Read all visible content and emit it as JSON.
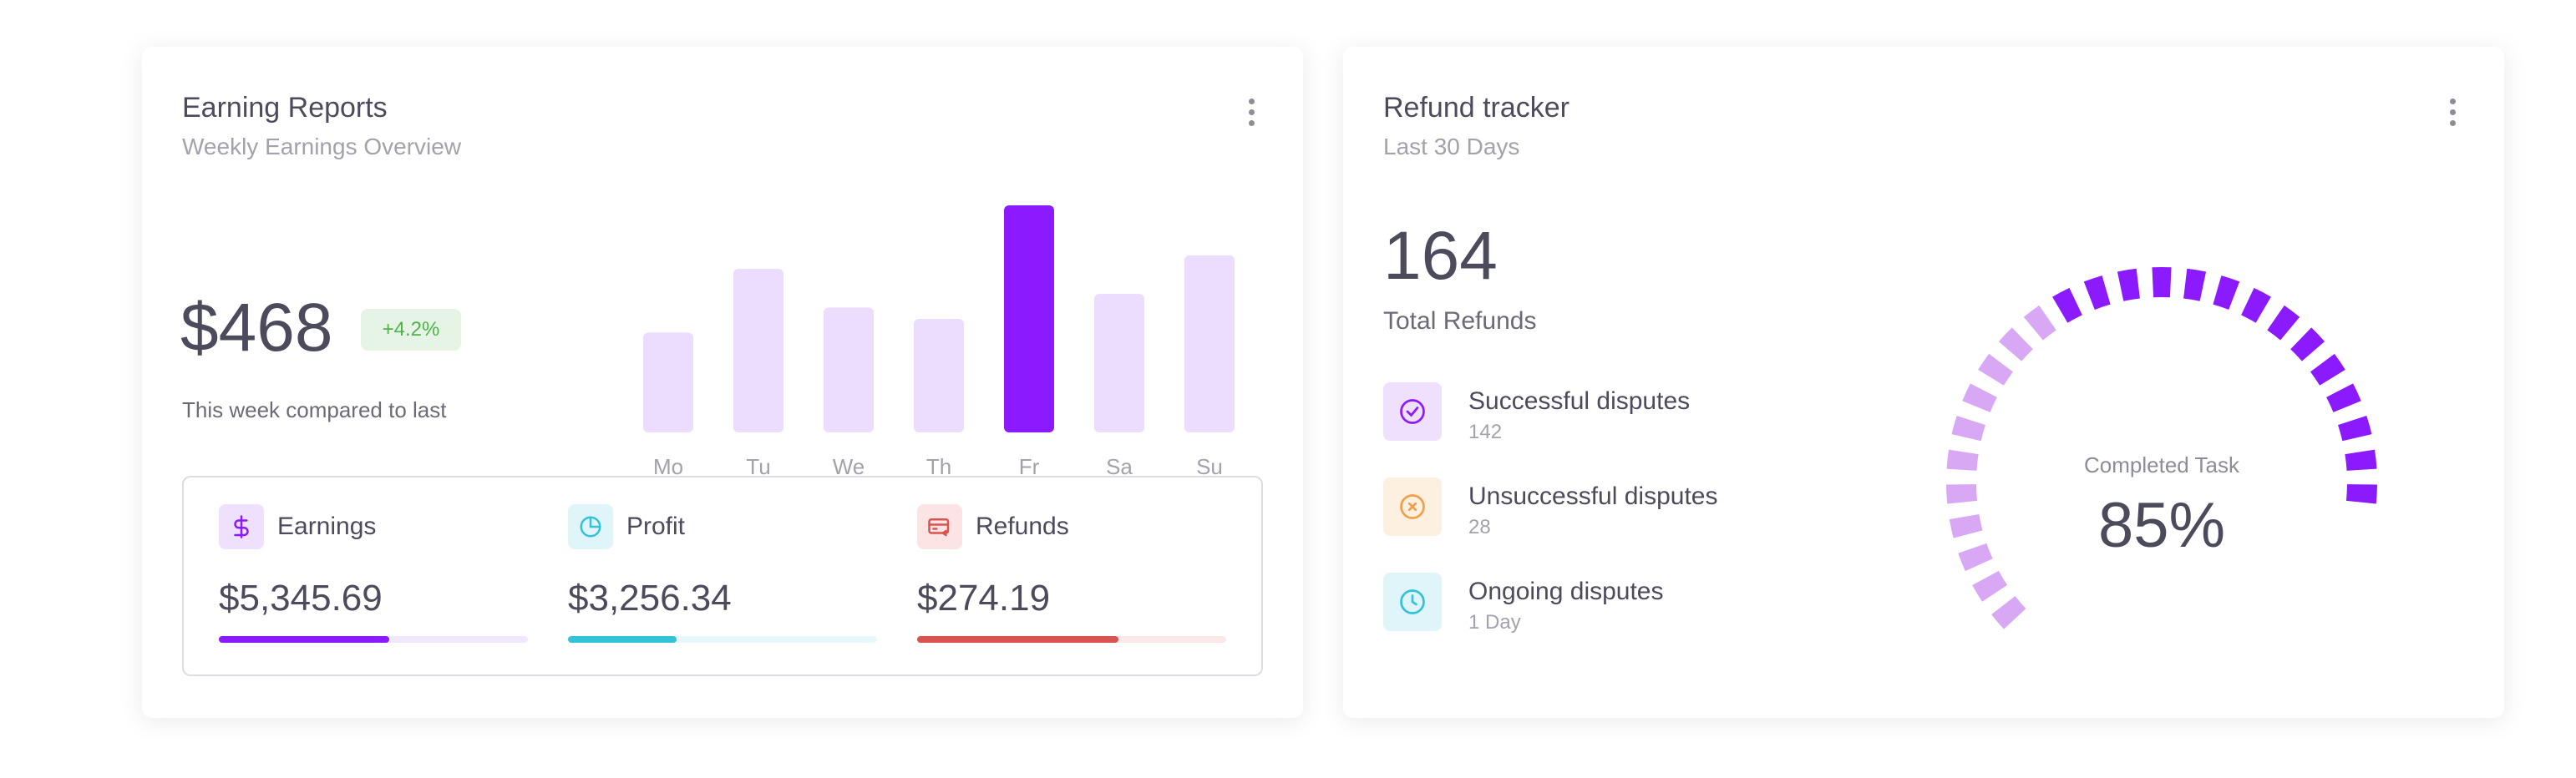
{
  "earning_reports": {
    "title": "Earning Reports",
    "subtitle": "Weekly Earnings Overview",
    "amount": "$468",
    "delta": "+4.2%",
    "compare_text": "This week compared to last",
    "chart_data": {
      "type": "bar",
      "categories": [
        "Mo",
        "Tu",
        "We",
        "Th",
        "Fr",
        "Sa",
        "Su"
      ],
      "values": [
        44,
        72,
        55,
        50,
        100,
        61,
        78
      ],
      "highlight_index": 4,
      "colors": {
        "highlight": "#8c1aff",
        "normal": "#ecdcfd"
      }
    },
    "stats": [
      {
        "icon": "dollar-icon",
        "label": "Earnings",
        "value": "$5,345.69",
        "progress": 0.55,
        "color": "#8c1aff",
        "track": "#f2e8fe",
        "bg": "#efe0fd"
      },
      {
        "icon": "pie-chart-icon",
        "label": "Profit",
        "value": "$3,256.34",
        "progress": 0.35,
        "color": "#33c2d8",
        "track": "#e8f7fa",
        "bg": "#dff5f9"
      },
      {
        "icon": "credit-card-icon",
        "label": "Refunds",
        "value": "$274.19",
        "progress": 0.65,
        "color": "#d9534f",
        "track": "#fbe9e9",
        "bg": "#fbe4e3"
      }
    ]
  },
  "refund_tracker": {
    "title": "Refund tracker",
    "subtitle": "Last 30 Days",
    "total": "164",
    "total_label": "Total Refunds",
    "disputes": [
      {
        "icon": "check-circle-icon",
        "title": "Successful disputes",
        "sub": "142",
        "color": "#8c1aff",
        "bg": "#efe0fd"
      },
      {
        "icon": "x-circle-icon",
        "title": "Unsuccessful disputes",
        "sub": "28",
        "color": "#f0a04b",
        "bg": "#fdf0e0"
      },
      {
        "icon": "clock-icon",
        "title": "Ongoing disputes",
        "sub": "1 Day",
        "color": "#33c2d8",
        "bg": "#dff5f9"
      }
    ],
    "gauge": {
      "label": "Completed Task",
      "value_text": "85%",
      "value": 0.85,
      "colors": {
        "dark": "#8c1aff",
        "light": "#d8a8f5"
      }
    }
  }
}
